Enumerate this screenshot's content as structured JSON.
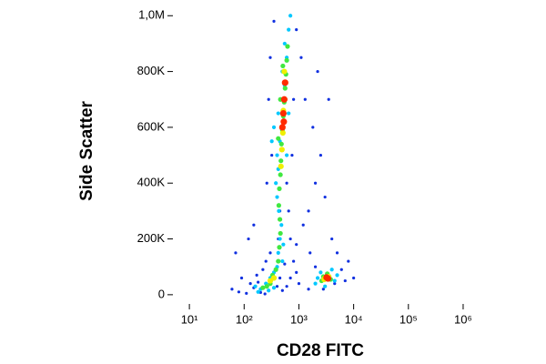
{
  "chart_data": {
    "type": "scatter",
    "xlabel": "CD28 FITC",
    "ylabel": "Side Scatter",
    "xscale": "log",
    "xlim": [
      5,
      1260000
    ],
    "ylim": [
      -20000,
      1040000
    ],
    "xticks": [
      {
        "value": 10,
        "label": "10¹"
      },
      {
        "value": 100,
        "label": "10²"
      },
      {
        "value": 1000,
        "label": "10³"
      },
      {
        "value": 10000,
        "label": "10⁴"
      },
      {
        "value": 100000,
        "label": "10⁵"
      },
      {
        "value": 1000000,
        "label": "10⁶"
      }
    ],
    "yticks": [
      0,
      {
        "value": 200000,
        "label": "200K"
      },
      {
        "value": 400000,
        "label": "400K"
      },
      {
        "value": 600000,
        "label": "600K"
      },
      {
        "value": 800000,
        "label": "800K"
      },
      {
        "value": 1000000,
        "label": "1,0M"
      }
    ],
    "series": [
      {
        "color": "#1030e0",
        "x": [
          60,
          80,
          110,
          130,
          150,
          90,
          170,
          220,
          250,
          300,
          200,
          180,
          600,
          700,
          800,
          900,
          1200,
          1500,
          2000,
          2500,
          1800,
          3000,
          4000,
          5000,
          6000,
          7000,
          1500,
          2000,
          4500,
          1300,
          1100,
          900,
          350,
          300,
          280,
          320,
          260,
          600,
          650,
          700,
          120,
          70,
          150,
          400,
          500,
          240,
          900,
          1000,
          3500,
          2200,
          8000,
          10000,
          2800,
          1600,
          450,
          550,
          750,
          800,
          450,
          420
        ],
        "values": [
          20000,
          10000,
          5000,
          40000,
          25000,
          60000,
          70000,
          90000,
          120000,
          150000,
          8000,
          45000,
          30000,
          60000,
          120000,
          180000,
          250000,
          300000,
          400000,
          500000,
          600000,
          350000,
          200000,
          150000,
          90000,
          50000,
          20000,
          100000,
          40000,
          700000,
          850000,
          950000,
          980000,
          850000,
          700000,
          500000,
          400000,
          400000,
          300000,
          200000,
          200000,
          150000,
          250000,
          30000,
          15000,
          3000,
          80000,
          40000,
          700000,
          800000,
          120000,
          60000,
          20000,
          150000,
          60000,
          110000,
          500000,
          700000,
          300000,
          200000
        ]
      },
      {
        "color": "#00c8ff",
        "x": [
          200,
          250,
          300,
          350,
          400,
          180,
          280,
          420,
          450,
          480,
          430,
          400,
          380,
          420,
          400,
          450,
          500,
          420,
          480,
          550,
          500,
          600,
          550,
          650,
          700,
          350,
          2000,
          2500,
          4000,
          4500,
          3000,
          2200,
          5000,
          500,
          520,
          600,
          650,
          320,
          160,
          350
        ],
        "values": [
          20000,
          40000,
          60000,
          80000,
          100000,
          10000,
          15000,
          150000,
          200000,
          250000,
          300000,
          350000,
          400000,
          450000,
          500000,
          550000,
          600000,
          650000,
          700000,
          750000,
          800000,
          850000,
          900000,
          950000,
          1000000,
          600000,
          40000,
          80000,
          90000,
          50000,
          30000,
          60000,
          70000,
          120000,
          180000,
          500000,
          650000,
          550000,
          30000,
          25000
        ]
      },
      {
        "color": "#40e840",
        "x": [
          260,
          300,
          330,
          380,
          420,
          440,
          460,
          450,
          430,
          440,
          460,
          470,
          480,
          500,
          520,
          540,
          560,
          580,
          600,
          620,
          2600,
          3300,
          3800,
          2800,
          420,
          460,
          220,
          510
        ],
        "values": [
          30000,
          40000,
          70000,
          90000,
          120000,
          170000,
          220000,
          270000,
          320000,
          380000,
          430000,
          480000,
          540000,
          590000,
          640000,
          690000,
          740000,
          790000,
          840000,
          890000,
          50000,
          75000,
          55000,
          65000,
          560000,
          700000,
          25000,
          820000
        ]
      },
      {
        "color": "#f0f000",
        "x": [
          300,
          350,
          470,
          490,
          510,
          530,
          550,
          570,
          3000,
          3500,
          2900,
          540,
          520
        ],
        "values": [
          50000,
          60000,
          460000,
          520000,
          580000,
          620000,
          700000,
          760000,
          60000,
          65000,
          55000,
          800000,
          660000
        ]
      },
      {
        "color": "#ff2a00",
        "x": [
          500,
          520,
          540,
          530,
          3200,
          3400,
          560
        ],
        "values": [
          600000,
          650000,
          700000,
          620000,
          62000,
          58000,
          760000
        ]
      }
    ]
  }
}
